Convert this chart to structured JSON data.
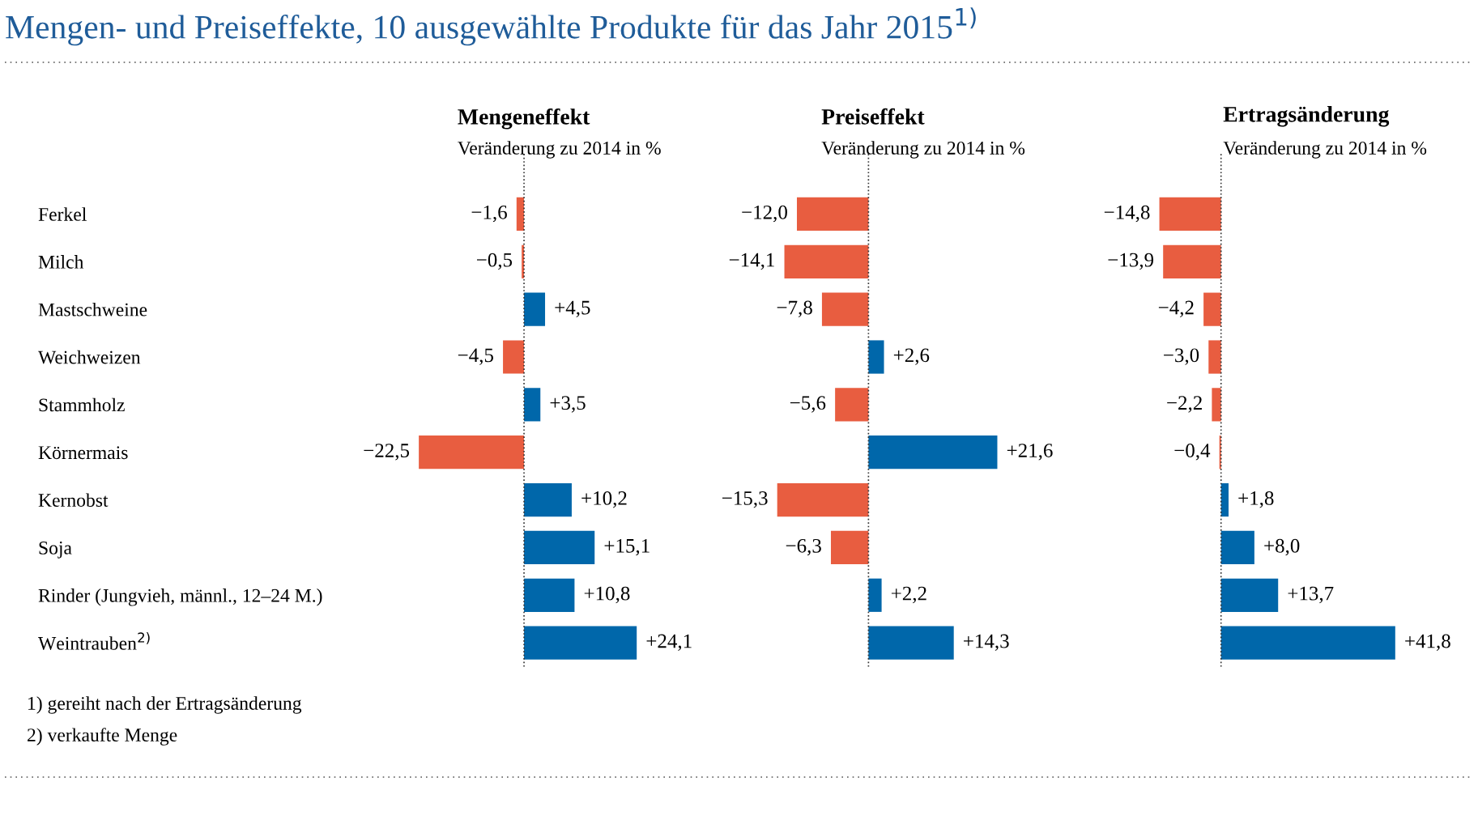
{
  "chart_data": [
    {
      "type": "other",
      "title": "Mengen- und Preiseffekte, 10 ausgewählte Produkte für das Jahr 2015$^{1)}$",
      "annotations": [
        "1) gereiht nach der Ertragsänderung",
        "2) verkaufte Menge"
      ]
    },
    {
      "type": "bar",
      "orientation": "horizontal",
      "title": "Mengeneffekt",
      "subtitle": "Veränderung zu 2014 in %",
      "tick_labels": "y",
      "categories": [
        "Ferkel",
        "Milch",
        "Mastschweine",
        "Weichweizen",
        "Stammholz",
        "Körnermais",
        "Kernobst",
        "Soja",
        "Rinder (Jungvieh, männl., 12–24 M.)",
        "Weintrauben$^{2)}$"
      ],
      "values": [
        -1.6,
        -0.5,
        4.5,
        -4.5,
        3.5,
        -22.5,
        10.2,
        15.1,
        10.8,
        24.1
      ],
      "value_labels": [
        "−1,6",
        "−0,5",
        "+4,5",
        "−4,5",
        "+3,5",
        "−22,5",
        "+10,2",
        "+15,1",
        "+10,8",
        "+24,1"
      ],
      "colors": [
        "#e85d40",
        "#e85d40",
        "#0067aa",
        "#e85d40",
        "#0067aa",
        "#e85d40",
        "#0067aa",
        "#0067aa",
        "#0067aa",
        "#0067aa"
      ],
      "ref_lines": [
        {
          "axis": "x",
          "value": 0,
          "line_style": "dotted",
          "color": "#333333"
        }
      ]
    },
    {
      "type": "bar",
      "orientation": "horizontal",
      "title": "Preiseffekt",
      "subtitle": "Veränderung zu 2014 in %",
      "values": [
        -12.0,
        -14.1,
        -7.8,
        2.6,
        -5.6,
        21.6,
        -15.3,
        -6.3,
        2.2,
        14.3
      ],
      "value_labels": [
        "−12,0",
        "−14,1",
        "−7,8",
        "+2,6",
        "−5,6",
        "+21,6",
        "−15,3",
        "−6,3",
        "+2,2",
        "+14,3"
      ],
      "colors": [
        "#e85d40",
        "#e85d40",
        "#e85d40",
        "#0067aa",
        "#e85d40",
        "#0067aa",
        "#e85d40",
        "#e85d40",
        "#0067aa",
        "#0067aa"
      ],
      "ref_lines": [
        {
          "axis": "x",
          "value": 0,
          "line_style": "dotted",
          "color": "#333333"
        }
      ]
    },
    {
      "type": "bar",
      "orientation": "horizontal",
      "title": "Ertragsänderung",
      "subtitle": "Veränderung zu 2014 in %",
      "values": [
        -14.8,
        -13.9,
        -4.2,
        -3.0,
        -2.2,
        -0.4,
        1.8,
        8.0,
        13.7,
        41.8
      ],
      "value_labels": [
        "−14,8",
        "−13,9",
        "−4,2",
        "−3,0",
        "−2,2",
        "−0,4",
        "+1,8",
        "+8,0",
        "+13,7",
        "+41,8"
      ],
      "colors": [
        "#e85d40",
        "#e85d40",
        "#e85d40",
        "#e85d40",
        "#e85d40",
        "#e85d40",
        "#0067aa",
        "#0067aa",
        "#0067aa",
        "#0067aa"
      ],
      "ref_lines": [
        {
          "axis": "x",
          "value": 0,
          "line_style": "dotted",
          "color": "#333333"
        }
      ]
    }
  ]
}
